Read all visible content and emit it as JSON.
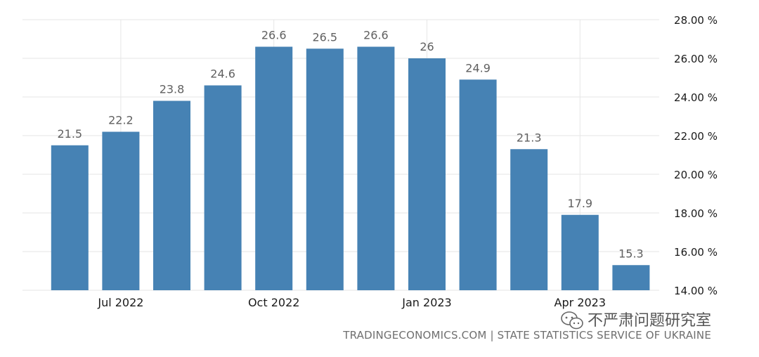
{
  "chart_data": {
    "type": "bar",
    "categories": [
      "Jun 2022",
      "Jul 2022",
      "Aug 2022",
      "Sep 2022",
      "Oct 2022",
      "Nov 2022",
      "Dec 2022",
      "Jan 2023",
      "Feb 2023",
      "Mar 2023",
      "Apr 2023",
      "May 2023"
    ],
    "values": [
      21.5,
      22.2,
      23.8,
      24.6,
      26.6,
      26.5,
      26.6,
      26,
      24.9,
      21.3,
      17.9,
      15.3
    ],
    "data_labels": [
      "21.5",
      "22.2",
      "23.8",
      "24.6",
      "26.6",
      "26.5",
      "26.6",
      "26",
      "24.9",
      "21.3",
      "17.9",
      "15.3"
    ],
    "x_tick_labels": [
      {
        "category": "Jul 2022",
        "label": "Jul 2022"
      },
      {
        "category": "Oct 2022",
        "label": "Oct 2022"
      },
      {
        "category": "Jan 2023",
        "label": "Jan 2023"
      },
      {
        "category": "Apr 2023",
        "label": "Apr 2023"
      }
    ],
    "y_ticks": [
      14,
      16,
      18,
      20,
      22,
      24,
      26,
      28
    ],
    "y_tick_labels": [
      "14.00 %",
      "16.00 %",
      "18.00 %",
      "20.00 %",
      "22.00 %",
      "24.00 %",
      "26.00 %",
      "28.00 %"
    ],
    "ylim": [
      14,
      28
    ],
    "y_axis_position": "right",
    "grid": true,
    "title": "",
    "xlabel": "",
    "ylabel": "",
    "bar_color": "#4682b4",
    "source": "TRADINGECONOMICS.COM | STATE STATISTICS SERVICE OF UKRAINE"
  },
  "watermark": {
    "text": "不严肃问题研究室",
    "icon": "wechat-icon"
  }
}
